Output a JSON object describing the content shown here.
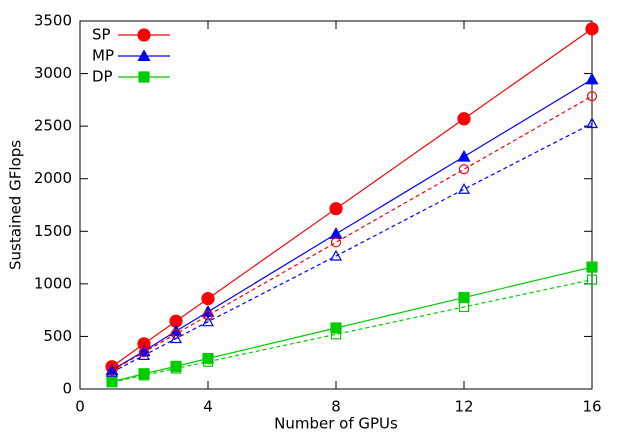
{
  "chart_data": {
    "type": "line",
    "xlabel": "Number of GPUs",
    "ylabel": "Sustained GFlops",
    "x": [
      1,
      2,
      3,
      4,
      8,
      12,
      16
    ],
    "series": [
      {
        "name": "SP",
        "color": "#ff0000",
        "marker": "circle",
        "filled": true,
        "dashed": false,
        "values": [
          212,
          430,
          645,
          860,
          1715,
          2570,
          3425
        ]
      },
      {
        "name": "MP",
        "color": "#0000ff",
        "marker": "triangle",
        "filled": true,
        "dashed": false,
        "values": [
          180,
          360,
          550,
          735,
          1475,
          2210,
          2945
        ]
      },
      {
        "name": "DP",
        "color": "#00cc00",
        "marker": "square",
        "filled": true,
        "dashed": false,
        "values": [
          70,
          145,
          215,
          290,
          580,
          870,
          1160
        ]
      },
      {
        "color": "#ff0000",
        "marker": "circle",
        "filled": false,
        "dashed": true,
        "values": [
          175,
          350,
          525,
          700,
          1395,
          2090,
          2785
        ]
      },
      {
        "color": "#0000ff",
        "marker": "triangle",
        "filled": false,
        "dashed": true,
        "values": [
          160,
          320,
          480,
          640,
          1265,
          1900,
          2525
        ]
      },
      {
        "color": "#00cc00",
        "marker": "square",
        "filled": false,
        "dashed": true,
        "values": [
          65,
          130,
          195,
          260,
          520,
          780,
          1040
        ]
      }
    ],
    "xlim": [
      0,
      16
    ],
    "xticks": [
      0,
      4,
      8,
      12,
      16
    ],
    "ylim": [
      0,
      3500
    ],
    "yticks": [
      0,
      500,
      1000,
      1500,
      2000,
      2500,
      3000,
      3500
    ],
    "grid": false,
    "legend": "upper left"
  }
}
